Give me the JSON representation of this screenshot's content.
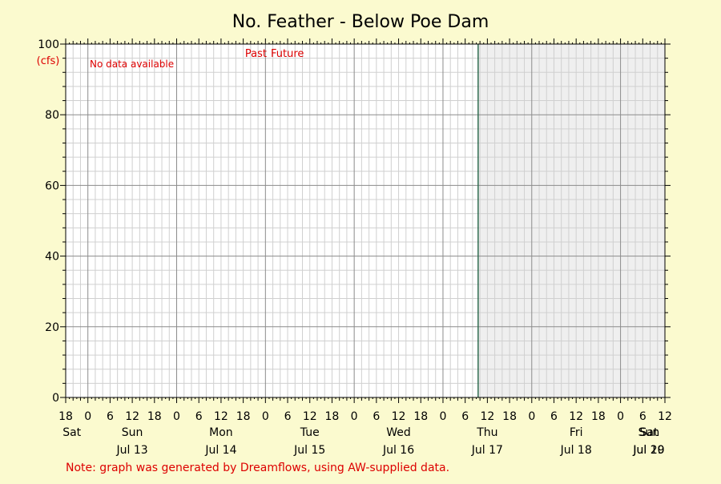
{
  "chart_data": {
    "type": "line",
    "title": "No. Feather - Below Poe Dam",
    "xlabel": "",
    "ylabel": "(cfs)",
    "ylim": [
      0,
      100
    ],
    "y_ticks": [
      0,
      20,
      40,
      60,
      80,
      100
    ],
    "x_start_hour": 18,
    "x_end_hour": 180,
    "now_hour": 129.5,
    "hour_tick_labels": [
      "18",
      "0",
      "6",
      "12",
      "18",
      "0",
      "6",
      "12",
      "18",
      "0",
      "6",
      "12",
      "18",
      "0",
      "6",
      "12",
      "18",
      "0",
      "6",
      "12",
      "18",
      "0",
      "6",
      "12",
      "18",
      "0",
      "6",
      "12",
      "18",
      "0",
      "6",
      "12"
    ],
    "days": [
      {
        "weekday": "Sat",
        "date": ""
      },
      {
        "weekday": "Sun",
        "date": "Jul 13"
      },
      {
        "weekday": "Mon",
        "date": "Jul 14"
      },
      {
        "weekday": "Tue",
        "date": "Jul 15"
      },
      {
        "weekday": "Wed",
        "date": "Jul 16"
      },
      {
        "weekday": "Thu",
        "date": "Jul 17"
      },
      {
        "weekday": "Fri",
        "date": "Jul 18"
      },
      {
        "weekday": "Sat",
        "date": "Jul 19"
      },
      {
        "weekday": "Sun",
        "date": "Jul 20"
      }
    ],
    "series": [],
    "grid": true,
    "past_label": "Past",
    "future_label": "Future",
    "no_data_text": "No data available",
    "note": "Note: graph was generated by Dreamflows, using AW-supplied data."
  },
  "colors": {
    "background": "#fbfacf",
    "plot_past": "#ffffff",
    "plot_future": "#efefef",
    "annotation_red": "#dd0000",
    "now_line": "#2e6b4f",
    "grid_major": "#8c8c8c",
    "grid_minor": "#d0d0d0",
    "axis": "#000000"
  }
}
